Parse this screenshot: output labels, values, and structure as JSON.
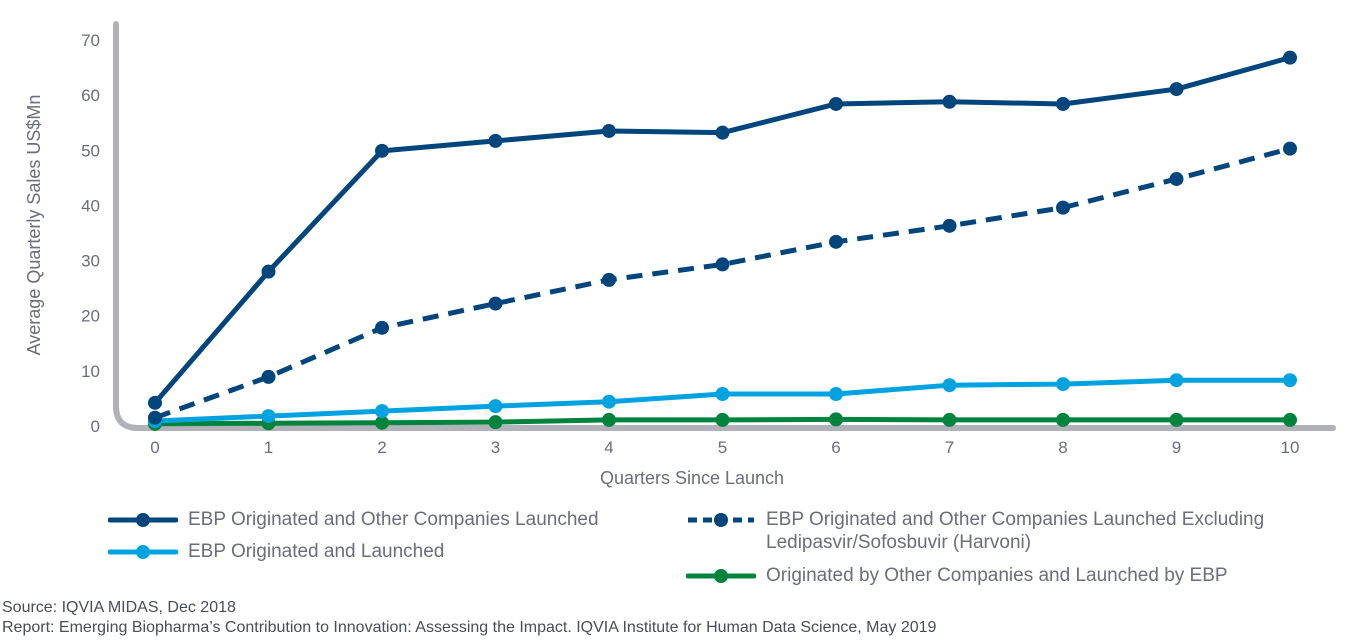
{
  "chart_data": {
    "type": "line",
    "title": "",
    "xlabel": "Quarters Since Launch",
    "ylabel": "Average Quarterly Sales US$Mn",
    "x": [
      0,
      1,
      2,
      3,
      4,
      5,
      6,
      7,
      8,
      9,
      10
    ],
    "xlim": [
      0,
      10
    ],
    "ylim": [
      0,
      70
    ],
    "yticks": [
      0,
      10,
      20,
      30,
      40,
      50,
      60,
      70
    ],
    "grid": false,
    "legend_placement": "bottom",
    "series": [
      {
        "name": "EBP Originated and Other Companies Launched",
        "color": "#00457c",
        "style": "solid",
        "values": [
          4.2,
          28.0,
          49.9,
          51.7,
          53.5,
          53.2,
          58.4,
          58.8,
          58.4,
          61.1,
          66.8
        ]
      },
      {
        "name": "EBP Originated and Other Companies Launched Excluding Ledipasvir/Sofosbuvir (Harvoni)",
        "color": "#00457c",
        "style": "dashed",
        "values": [
          1.5,
          8.9,
          17.8,
          22.2,
          26.5,
          29.3,
          33.4,
          36.3,
          39.6,
          44.8,
          50.3
        ]
      },
      {
        "name": "EBP Originated and Launched",
        "color": "#00a3e0",
        "style": "solid",
        "values": [
          0.9,
          1.8,
          2.7,
          3.6,
          4.4,
          5.8,
          5.8,
          7.4,
          7.6,
          8.3,
          8.3
        ]
      },
      {
        "name": "Originated by Other Companies and Launched by EBP",
        "color": "#00843d",
        "style": "solid",
        "values": [
          0.4,
          0.5,
          0.6,
          0.7,
          1.1,
          1.1,
          1.2,
          1.1,
          1.1,
          1.1,
          1.1
        ]
      }
    ]
  },
  "legend": {
    "items": [
      {
        "label": "EBP Originated and Other Companies Launched"
      },
      {
        "label": "EBP Originated and Launched"
      },
      {
        "label": "EBP Originated and Other Companies Launched Excluding",
        "label2": "Ledipasvir/Sofosbuvir (Harvoni)"
      },
      {
        "label": "Originated by Other Companies and Launched by EBP"
      }
    ]
  },
  "source": "Source: IQVIA MIDAS, Dec 2018",
  "report": "Report: Emerging Biopharma’s Contribution to Innovation: Assessing the Impact. IQVIA Institute for Human Data Science, May 2019",
  "axis_color": "#b1b1b9"
}
